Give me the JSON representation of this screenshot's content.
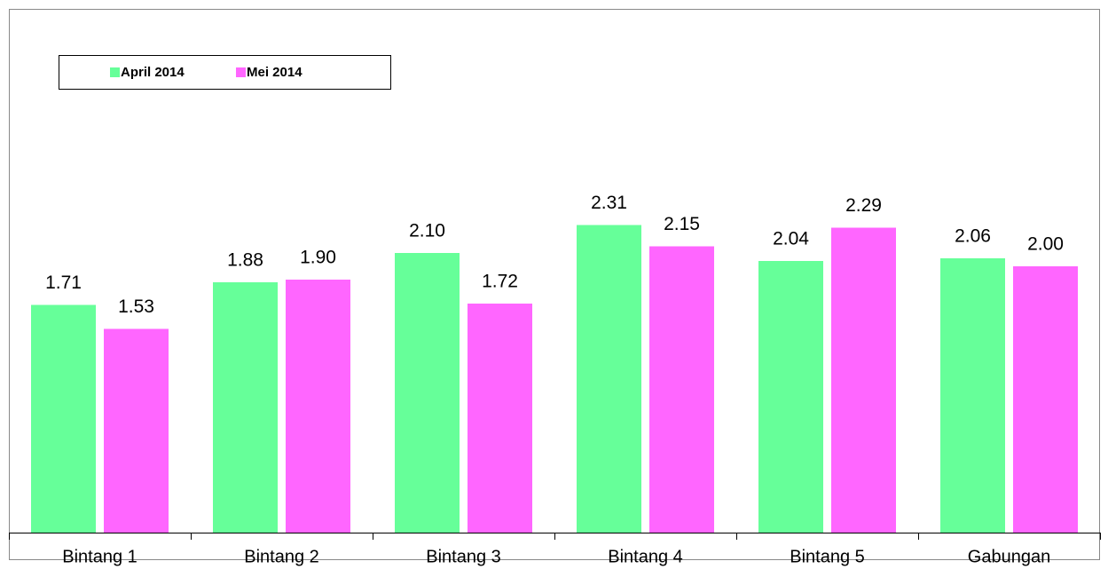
{
  "chart_data": {
    "type": "bar",
    "categories": [
      "Bintang 1",
      "Bintang 2",
      "Bintang 3",
      "Bintang 4",
      "Bintang 5",
      "Gabungan"
    ],
    "series": [
      {
        "name": "April 2014",
        "color": "#66ff99",
        "values": [
          1.71,
          1.88,
          2.1,
          2.31,
          2.04,
          2.06
        ],
        "value_labels": [
          "1.71",
          "1.88",
          "2.10",
          "2.31",
          "2.04",
          "2.06"
        ]
      },
      {
        "name": "Mei 2014",
        "color": "#ff66ff",
        "values": [
          1.53,
          1.9,
          1.72,
          2.15,
          2.29,
          2.0
        ],
        "value_labels": [
          "1.53",
          "1.90",
          "1.72",
          "2.15",
          "2.29",
          "2.00"
        ]
      }
    ],
    "ylim": [
      0,
      4
    ],
    "legend": "top-left",
    "grid": false
  }
}
